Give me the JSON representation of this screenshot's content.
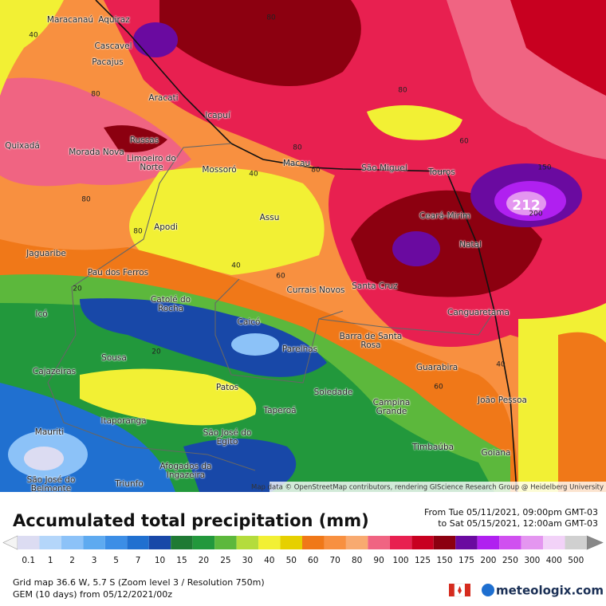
{
  "map": {
    "cities": [
      "Maracanaú",
      "Aquiraz",
      "Cascavel",
      "Pacajus",
      "Aracati",
      "Icapuí",
      "Quixadá",
      "Russas",
      "Morada Nova",
      "Limoeiro do Norte",
      "Mossoró",
      "Macau",
      "São Miguel",
      "Touros",
      "Ceará-Mirim",
      "Natal",
      "Assu",
      "Apodi",
      "Jaguaribe",
      "Pau dos Ferros",
      "Catolé do Rocha",
      "Currais Novos",
      "Santa Cruz",
      "Canguaretama",
      "Icó",
      "Caicó",
      "Parelhas",
      "Barra de Santa Rosa",
      "Sousa",
      "Cajazeiras",
      "Guarabira",
      "Patos",
      "Soledade",
      "Campina Grande",
      "João Pessoa",
      "Taperoá",
      "Itaporanga",
      "Mauriti",
      "São José do Egito",
      "Timbaúba",
      "Goiana",
      "Afogados da Ingazeira",
      "Triunfo",
      "São José do Belmonte"
    ],
    "contour_labels": [
      80,
      40,
      80,
      80,
      80,
      60,
      80,
      40,
      150,
      200,
      80,
      80,
      40,
      60,
      20,
      20,
      60,
      40
    ],
    "max_label": "212",
    "attribution": "Map data © OpenStreetMap contributors, rendering GIScience Research Group @ Heidelberg University"
  },
  "panel": {
    "title": "Accumulated total precipitation (mm)",
    "period": [
      "From Tue 05/11/2021, 09:00pm GMT-03",
      "to Sat 05/15/2021, 12:00am GMT-03"
    ],
    "info": [
      "Grid map 36.6 W, 5.7 S (Zoom level 3 / Resolution 750m)",
      "GEM (10 days) from 05/12/2021/00z"
    ],
    "brand": "meteologix.com"
  },
  "legend": {
    "values": [
      0.1,
      1,
      2,
      3,
      5,
      7,
      10,
      15,
      20,
      25,
      30,
      40,
      50,
      60,
      70,
      80,
      90,
      100,
      125,
      150,
      175,
      200,
      250,
      300,
      400,
      500
    ],
    "colors": [
      "#dcdcf2",
      "#b4d6fa",
      "#8cc2f8",
      "#5eaaf0",
      "#3c8ee6",
      "#2070d0",
      "#1848a8",
      "#1f7a34",
      "#22983c",
      "#5cb83c",
      "#b4dc3c",
      "#f2f034",
      "#e6d000",
      "#f07818",
      "#f89040",
      "#f8aa70",
      "#f06482",
      "#e82050",
      "#c80020",
      "#8c0010",
      "#6a0aa0",
      "#b020f0",
      "#d050f0",
      "#e496f0",
      "#f2d2f8",
      "#d0d0d0"
    ]
  }
}
